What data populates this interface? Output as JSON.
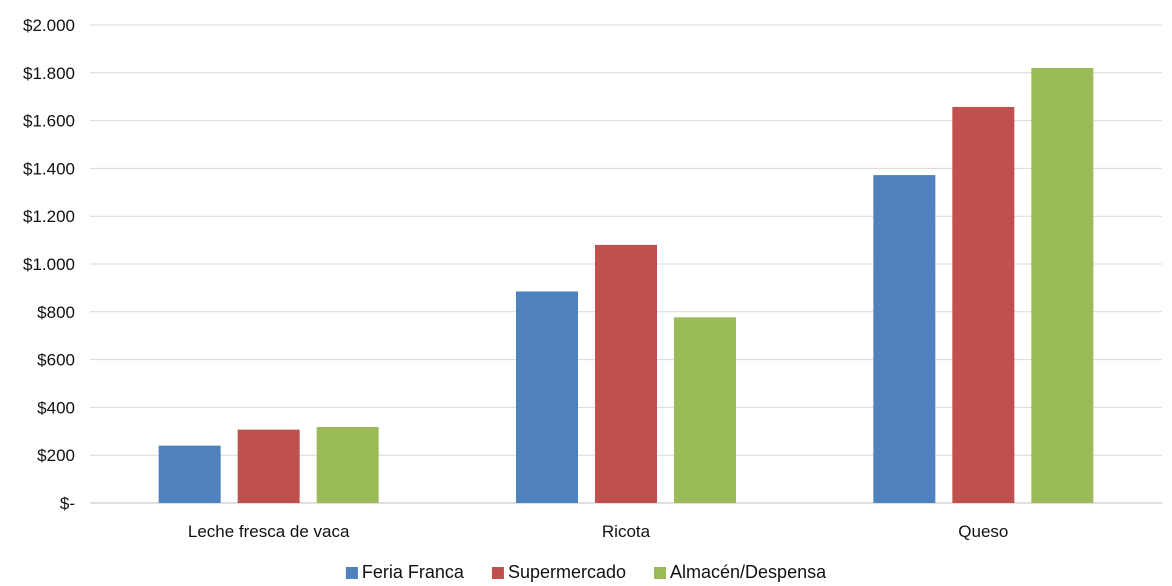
{
  "chart_data": {
    "type": "bar",
    "categories": [
      "Leche fresca de vaca",
      "Ricota",
      "Queso"
    ],
    "series": [
      {
        "name": "Feria Franca",
        "values": [
          240,
          885,
          1372
        ],
        "color": "#4F81BD"
      },
      {
        "name": "Supermercado",
        "values": [
          307,
          1080,
          1657
        ],
        "color": "#C0504D"
      },
      {
        "name": "Almacén/Despensa",
        "values": [
          318,
          777,
          1820
        ],
        "color": "#9BBB59"
      }
    ],
    "ylim": [
      0,
      2000
    ],
    "y_ticks": [
      0,
      200,
      400,
      600,
      800,
      1000,
      1200,
      1400,
      1600,
      1800,
      2000
    ],
    "y_tick_labels": [
      "$-",
      "$200",
      "$400",
      "$600",
      "$800",
      "$1.000",
      "$1.200",
      "$1.400",
      "$1.600",
      "$1.800",
      "$2.000"
    ],
    "grid": true,
    "legend_position": "bottom",
    "gridline_color": "#D9D9D9",
    "axis_color": "#BFBFBF"
  }
}
